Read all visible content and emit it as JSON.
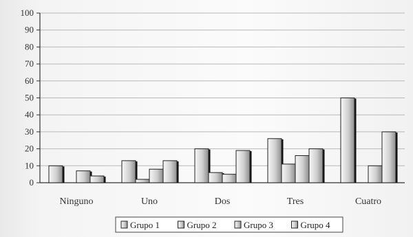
{
  "chart_data": {
    "type": "bar",
    "categories": [
      "Ninguno",
      "Uno",
      "Dos",
      "Tres",
      "Cuatro"
    ],
    "series": [
      {
        "name": "Grupo 1",
        "values": [
          10,
          13,
          20,
          26,
          50
        ]
      },
      {
        "name": "Grupo 2",
        "values": [
          0,
          2,
          6,
          11,
          0
        ]
      },
      {
        "name": "Grupo 3",
        "values": [
          7,
          8,
          5,
          16,
          10
        ]
      },
      {
        "name": "Grupo 4",
        "values": [
          4,
          13,
          19,
          20,
          30
        ]
      }
    ],
    "ylim": [
      0,
      100
    ],
    "yticks": [
      0,
      10,
      20,
      30,
      40,
      50,
      60,
      70,
      80,
      90,
      100
    ],
    "grid": true,
    "legend_position": "bottom",
    "title": "",
    "xlabel": "",
    "ylabel": "",
    "colors": {
      "bar_fill_light": "#f4f4f4",
      "bar_fill_dark": "#9a9a9a",
      "bar_edge": "#222222",
      "gridline": "#b8b8b8"
    }
  }
}
